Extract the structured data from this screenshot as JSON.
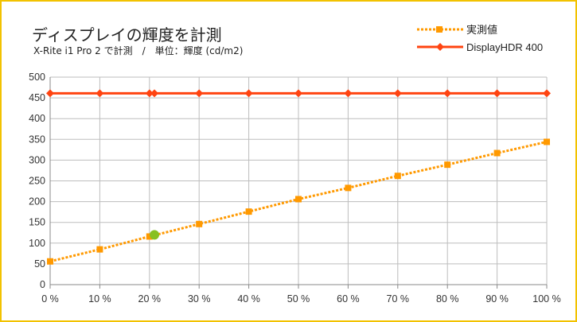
{
  "chart_data": {
    "type": "line",
    "title": "ディスプレイの輝度を計測",
    "subtitle": "X-Rite i1 Pro 2 で計測　/　単位：輝度 (cd/m2)",
    "x": [
      0,
      10,
      20,
      21,
      30,
      40,
      50,
      60,
      70,
      80,
      90,
      100
    ],
    "x_tick_labels": [
      "0 %",
      "10 %",
      "20 %",
      "30 %",
      "40 %",
      "50 %",
      "60 %",
      "70 %",
      "80 %",
      "90 %",
      "100 %"
    ],
    "x_ticks": [
      0,
      10,
      20,
      30,
      40,
      50,
      60,
      70,
      80,
      90,
      100
    ],
    "xlim": [
      0,
      100
    ],
    "ylim": [
      0,
      500
    ],
    "y_ticks": [
      0,
      50,
      100,
      150,
      200,
      250,
      300,
      350,
      400,
      450,
      500
    ],
    "grid": true,
    "legend_position": "top-right",
    "series": [
      {
        "name": "実測値",
        "color": "#ff9900",
        "style": "dotted",
        "marker": "square",
        "x": [
          0,
          10,
          20,
          30,
          40,
          50,
          60,
          70,
          80,
          90,
          100
        ],
        "values": [
          56,
          85,
          116,
          146,
          176,
          206,
          233,
          262,
          289,
          317,
          344
        ]
      },
      {
        "name": "DisplayHDR 400",
        "color": "#ff4411",
        "style": "solid",
        "marker": "diamond",
        "x": [
          0,
          10,
          20,
          21,
          30,
          40,
          50,
          60,
          70,
          80,
          90,
          100
        ],
        "values": [
          461,
          461,
          461,
          461,
          461,
          461,
          461,
          461,
          461,
          461,
          461,
          461
        ]
      }
    ],
    "highlight_point": {
      "x": 21,
      "y": 120,
      "color": "#88c020"
    }
  }
}
